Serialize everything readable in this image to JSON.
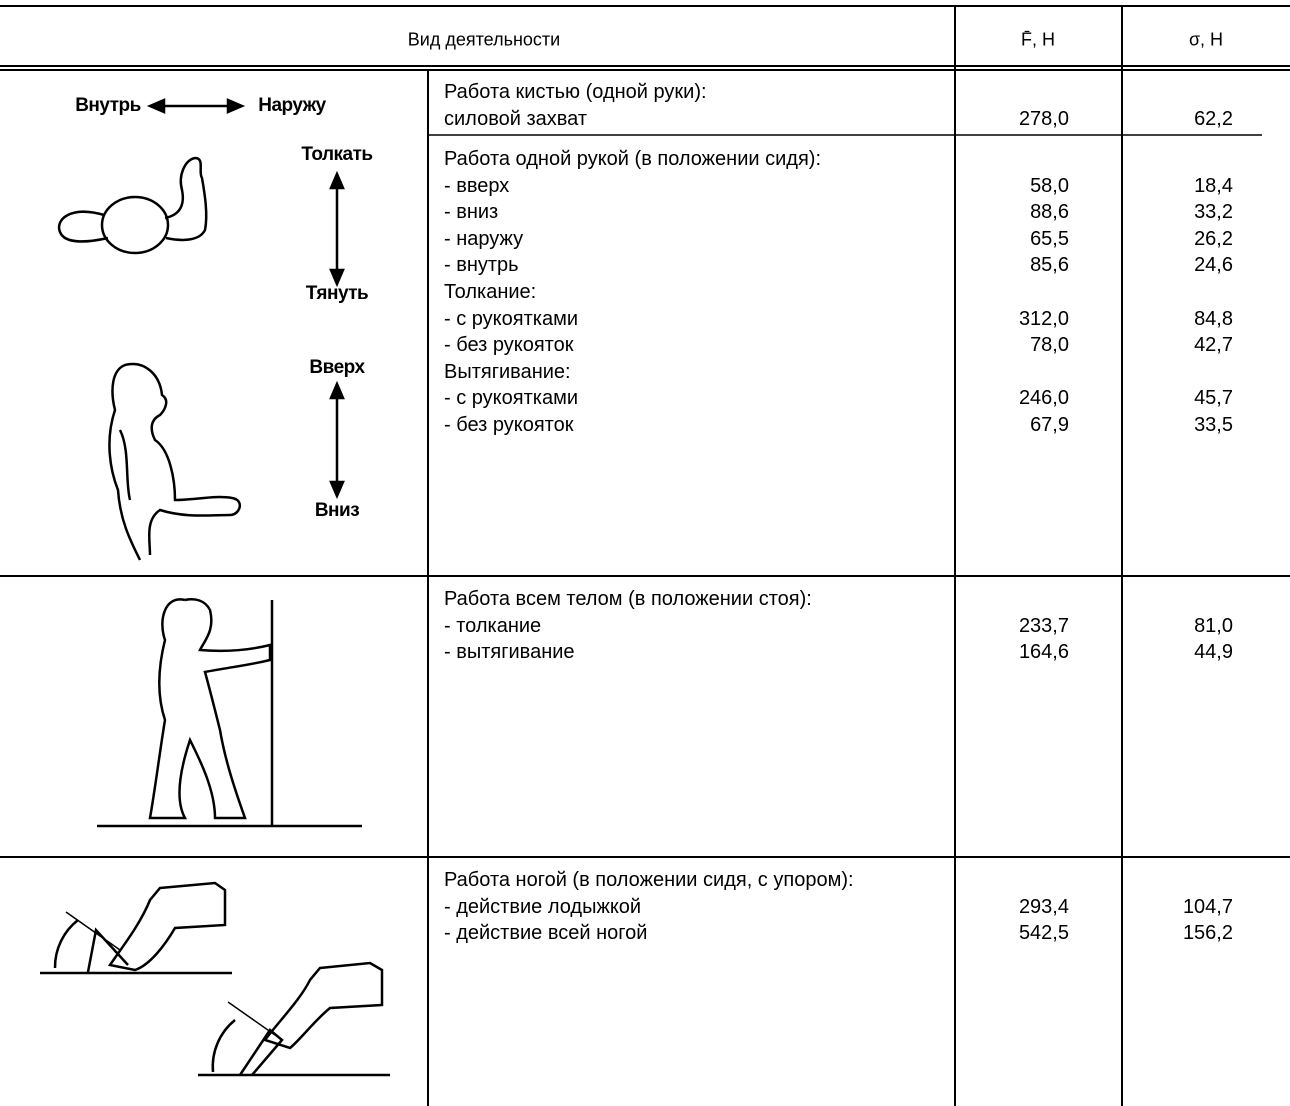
{
  "header": {
    "activity": "Вид деятельности",
    "force": "F̄, Н",
    "sigma": "σ, Н"
  },
  "figure_labels": {
    "inward": "Внутрь",
    "outward": "Наружу",
    "push": "Толкать",
    "pull": "Тянуть",
    "up": "Вверх",
    "down": "Вниз"
  },
  "sections": [
    {
      "blocks": [
        {
          "rows": [
            {
              "text": "Работа кистью (одной руки):"
            },
            {
              "text": "силовой захват",
              "force": "278,0",
              "sigma": "62,2"
            }
          ]
        },
        {
          "rows": [
            {
              "text": "Работа одной рукой (в положении сидя):"
            },
            {
              "text": "- вверх",
              "force": "58,0",
              "sigma": "18,4"
            },
            {
              "text": "- вниз",
              "force": "88,6",
              "sigma": "33,2"
            },
            {
              "text": "- наружу",
              "force": "65,5",
              "sigma": "26,2"
            },
            {
              "text": "- внутрь",
              "force": "85,6",
              "sigma": "24,6"
            },
            {
              "text": "Толкание:"
            },
            {
              "text": "- с рукоятками",
              "force": "312,0",
              "sigma": "84,8"
            },
            {
              "text": "- без рукояток",
              "force": "78,0",
              "sigma": "42,7"
            },
            {
              "text": "Вытягивание:"
            },
            {
              "text": "- с рукоятками",
              "force": "246,0",
              "sigma": "45,7"
            },
            {
              "text": "- без рукояток",
              "force": "67,9",
              "sigma": "33,5"
            }
          ]
        }
      ]
    },
    {
      "blocks": [
        {
          "rows": [
            {
              "text": "Работа всем телом (в положении стоя):"
            },
            {
              "text": "- толкание",
              "force": "233,7",
              "sigma": "81,0"
            },
            {
              "text": "- вытягивание",
              "force": "164,6",
              "sigma": "44,9"
            }
          ]
        }
      ]
    },
    {
      "blocks": [
        {
          "rows": [
            {
              "text": "Работа ногой (в положении сидя, с упором):"
            },
            {
              "text": "- действие лодыжкой",
              "force": "293,4",
              "sigma": "104,7"
            },
            {
              "text": "- действие всей ногой",
              "force": "542,5",
              "sigma": "156,2"
            }
          ]
        }
      ]
    }
  ]
}
